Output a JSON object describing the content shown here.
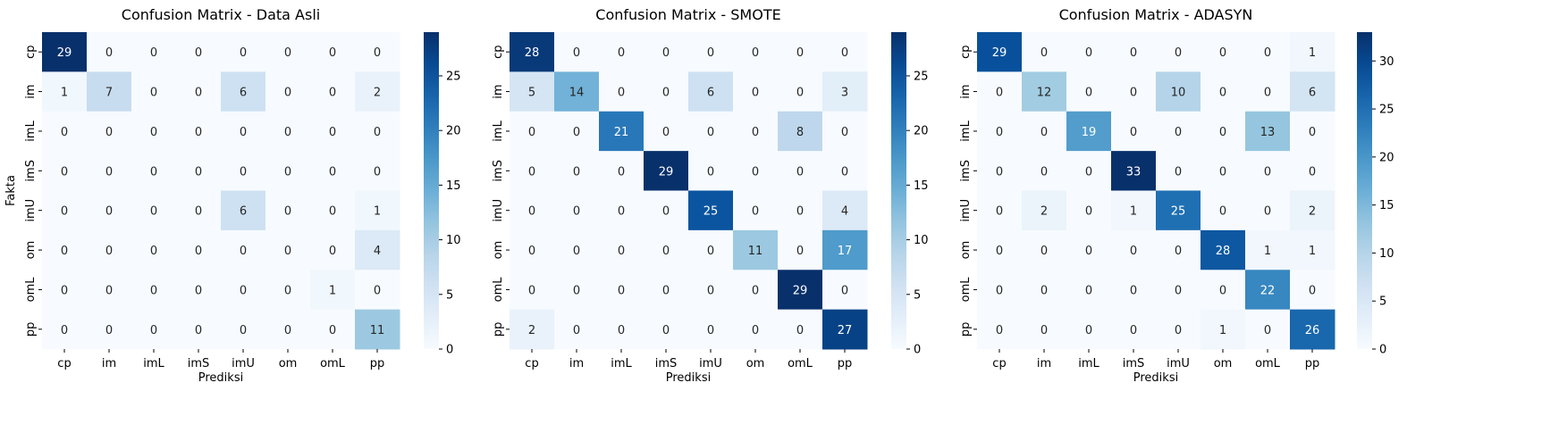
{
  "chart_data": [
    {
      "type": "heatmap",
      "title": "Confusion Matrix - Data Asli",
      "xlabel": "Prediksi",
      "ylabel": "Fakta",
      "x_categories": [
        "cp",
        "im",
        "imL",
        "imS",
        "imU",
        "om",
        "omL",
        "pp"
      ],
      "y_categories": [
        "cp",
        "im",
        "imL",
        "imS",
        "imU",
        "om",
        "omL",
        "pp"
      ],
      "values": [
        [
          29,
          0,
          0,
          0,
          0,
          0,
          0,
          0
        ],
        [
          1,
          7,
          0,
          0,
          6,
          0,
          0,
          2
        ],
        [
          0,
          0,
          0,
          0,
          0,
          0,
          0,
          0
        ],
        [
          0,
          0,
          0,
          0,
          0,
          0,
          0,
          0
        ],
        [
          0,
          0,
          0,
          0,
          6,
          0,
          0,
          1
        ],
        [
          0,
          0,
          0,
          0,
          0,
          0,
          0,
          4
        ],
        [
          0,
          0,
          0,
          0,
          0,
          0,
          1,
          0
        ],
        [
          0,
          0,
          0,
          0,
          0,
          0,
          0,
          11
        ]
      ],
      "colorbar": {
        "min": 0,
        "max": 29,
        "ticks": [
          0,
          5,
          10,
          15,
          20,
          25
        ]
      },
      "colormap": "Blues"
    },
    {
      "type": "heatmap",
      "title": "Confusion Matrix - SMOTE",
      "xlabel": "Prediksi",
      "ylabel": "",
      "x_categories": [
        "cp",
        "im",
        "imL",
        "imS",
        "imU",
        "om",
        "omL",
        "pp"
      ],
      "y_categories": [
        "cp",
        "im",
        "imL",
        "imS",
        "imU",
        "om",
        "omL",
        "pp"
      ],
      "values": [
        [
          28,
          0,
          0,
          0,
          0,
          0,
          0,
          0
        ],
        [
          5,
          14,
          0,
          0,
          6,
          0,
          0,
          3
        ],
        [
          0,
          0,
          21,
          0,
          0,
          0,
          8,
          0
        ],
        [
          0,
          0,
          0,
          29,
          0,
          0,
          0,
          0
        ],
        [
          0,
          0,
          0,
          0,
          25,
          0,
          0,
          4
        ],
        [
          0,
          0,
          0,
          0,
          0,
          11,
          0,
          17
        ],
        [
          0,
          0,
          0,
          0,
          0,
          0,
          29,
          0
        ],
        [
          2,
          0,
          0,
          0,
          0,
          0,
          0,
          27
        ]
      ],
      "colorbar": {
        "min": 0,
        "max": 29,
        "ticks": [
          0,
          5,
          10,
          15,
          20,
          25
        ]
      },
      "colormap": "Blues"
    },
    {
      "type": "heatmap",
      "title": "Confusion Matrix - ADASYN",
      "xlabel": "Prediksi",
      "ylabel": "",
      "x_categories": [
        "cp",
        "im",
        "imL",
        "imS",
        "imU",
        "om",
        "omL",
        "pp"
      ],
      "y_categories": [
        "cp",
        "im",
        "imL",
        "imS",
        "imU",
        "om",
        "omL",
        "pp"
      ],
      "values": [
        [
          29,
          0,
          0,
          0,
          0,
          0,
          0,
          1
        ],
        [
          0,
          12,
          0,
          0,
          10,
          0,
          0,
          6
        ],
        [
          0,
          0,
          19,
          0,
          0,
          0,
          13,
          0
        ],
        [
          0,
          0,
          0,
          33,
          0,
          0,
          0,
          0
        ],
        [
          0,
          2,
          0,
          1,
          25,
          0,
          0,
          2
        ],
        [
          0,
          0,
          0,
          0,
          0,
          28,
          1,
          1
        ],
        [
          0,
          0,
          0,
          0,
          0,
          0,
          22,
          0
        ],
        [
          0,
          0,
          0,
          0,
          0,
          1,
          0,
          26
        ]
      ],
      "colorbar": {
        "min": 0,
        "max": 33,
        "ticks": [
          0,
          5,
          10,
          15,
          20,
          25,
          30
        ]
      },
      "colormap": "Blues"
    }
  ]
}
